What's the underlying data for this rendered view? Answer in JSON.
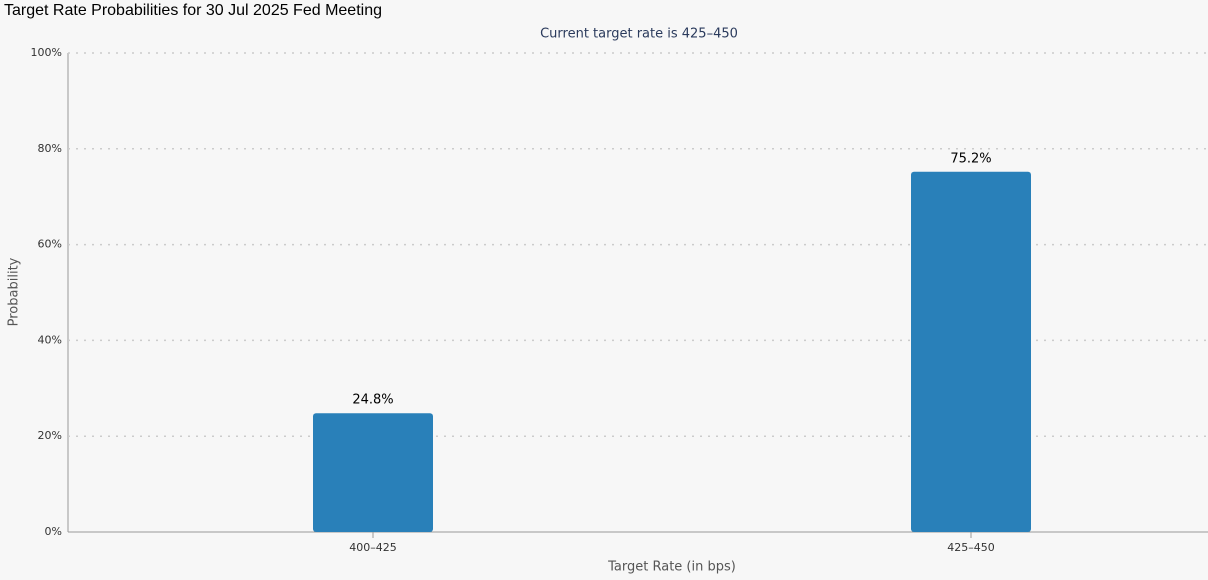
{
  "chart_data": {
    "type": "bar",
    "title": "Target Rate Probabilities for 30 Jul 2025 Fed Meeting",
    "subtitle": "Current target rate is 425–450",
    "x_label": "Target Rate (in bps)",
    "y_label": "Probability",
    "categories": [
      "400–425",
      "425–450"
    ],
    "values": [
      24.8,
      75.2
    ],
    "value_labels": [
      "24.8%",
      "75.2%"
    ],
    "color": "#2980b9",
    "ylim": [
      0,
      100
    ],
    "yticks": [
      {
        "value": 0,
        "label": "0%"
      },
      {
        "value": 20,
        "label": "20%"
      },
      {
        "value": 40,
        "label": "40%"
      },
      {
        "value": 60,
        "label": "60%"
      },
      {
        "value": 80,
        "label": "80%"
      },
      {
        "value": 100,
        "label": "100%"
      }
    ],
    "grid": true
  }
}
